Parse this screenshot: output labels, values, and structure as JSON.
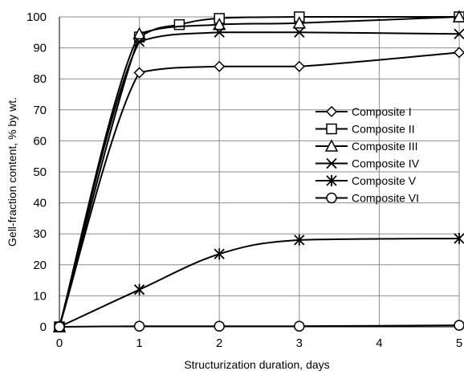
{
  "chart_data": {
    "type": "line",
    "title": "",
    "xlabel": "Structurization duration, days",
    "ylabel": "Gell-fraction content, % by wt.",
    "xlim": [
      0,
      5
    ],
    "ylim": [
      0,
      100
    ],
    "x_ticks": [
      0,
      1,
      2,
      3,
      4,
      5
    ],
    "y_ticks": [
      0,
      10,
      20,
      30,
      40,
      50,
      60,
      70,
      80,
      90,
      100
    ],
    "grid": true,
    "legend_position": "right",
    "series": [
      {
        "name": "Composite I",
        "marker": "diamond",
        "points": [
          [
            0,
            0
          ],
          [
            1,
            82
          ],
          [
            2,
            84
          ],
          [
            3,
            84
          ],
          [
            5,
            88.5
          ]
        ]
      },
      {
        "name": "Composite II",
        "marker": "square",
        "points": [
          [
            0,
            0
          ],
          [
            1,
            93.5
          ],
          [
            1.5,
            97.5
          ],
          [
            2,
            99.5
          ],
          [
            3,
            100
          ],
          [
            5,
            100
          ]
        ]
      },
      {
        "name": "Composite III",
        "marker": "triangle",
        "points": [
          [
            0,
            0
          ],
          [
            1,
            94.5
          ],
          [
            2,
            97.5
          ],
          [
            3,
            98
          ],
          [
            5,
            100
          ]
        ]
      },
      {
        "name": "Composite IV",
        "marker": "x",
        "points": [
          [
            0,
            0
          ],
          [
            1,
            92
          ],
          [
            2,
            95
          ],
          [
            3,
            95
          ],
          [
            5,
            94.5
          ]
        ]
      },
      {
        "name": "Composite V",
        "marker": "star",
        "points": [
          [
            0,
            0
          ],
          [
            1,
            12
          ],
          [
            2,
            23.5
          ],
          [
            3,
            28
          ],
          [
            5,
            28.5
          ]
        ]
      },
      {
        "name": "Composite VI",
        "marker": "circle",
        "points": [
          [
            0,
            0
          ],
          [
            1,
            0.2
          ],
          [
            2,
            0.2
          ],
          [
            3,
            0.2
          ],
          [
            5,
            0.5
          ]
        ]
      }
    ]
  }
}
